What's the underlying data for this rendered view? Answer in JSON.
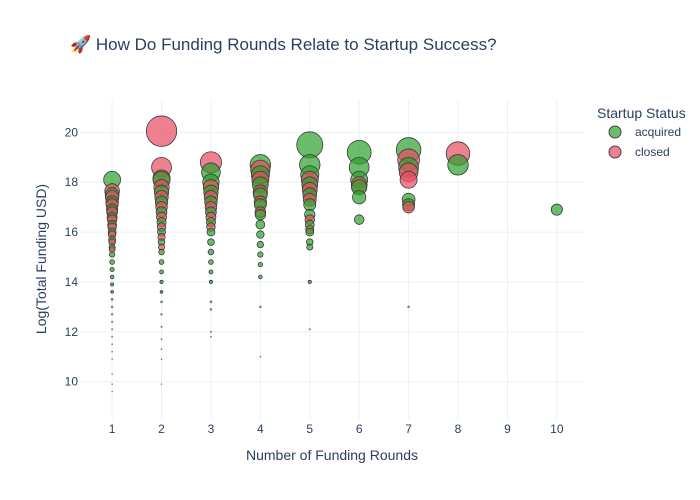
{
  "chart_data": {
    "type": "scatter",
    "title": "🚀 How Do Funding Rounds Relate to Startup Success?",
    "xlabel": "Number of Funding Rounds",
    "ylabel": "Log(Total Funding USD)",
    "xlim": [
      0.35,
      10.55
    ],
    "ylim": [
      8.5,
      21.3
    ],
    "x_ticks": [
      1,
      2,
      3,
      4,
      5,
      6,
      7,
      8,
      9,
      10
    ],
    "y_ticks": [
      10,
      12,
      14,
      16,
      18,
      20
    ],
    "grid": true,
    "legend": {
      "title": "Startup Status",
      "placement": "top-right"
    },
    "series": [
      {
        "name": "acquired",
        "color": "#2ca02c",
        "points": [
          {
            "x": 1,
            "y": 18.1
          },
          {
            "x": 1,
            "y": 17.5
          },
          {
            "x": 1,
            "y": 17.2
          },
          {
            "x": 1,
            "y": 16.9
          },
          {
            "x": 1,
            "y": 16.6
          },
          {
            "x": 1,
            "y": 16.3
          },
          {
            "x": 1,
            "y": 16.0
          },
          {
            "x": 1,
            "y": 15.7
          },
          {
            "x": 1,
            "y": 15.4
          },
          {
            "x": 1,
            "y": 15.1
          },
          {
            "x": 1,
            "y": 14.8
          },
          {
            "x": 1,
            "y": 14.5
          },
          {
            "x": 1,
            "y": 14.2
          },
          {
            "x": 1,
            "y": 13.9
          },
          {
            "x": 1,
            "y": 13.6
          },
          {
            "x": 1,
            "y": 13.3
          },
          {
            "x": 1,
            "y": 13.0
          },
          {
            "x": 1,
            "y": 12.7
          },
          {
            "x": 1,
            "y": 12.4
          },
          {
            "x": 1,
            "y": 12.1
          },
          {
            "x": 1,
            "y": 11.8
          },
          {
            "x": 1,
            "y": 11.5
          },
          {
            "x": 1,
            "y": 11.2
          },
          {
            "x": 1,
            "y": 10.9
          },
          {
            "x": 1,
            "y": 10.3
          },
          {
            "x": 1,
            "y": 9.9
          },
          {
            "x": 1,
            "y": 9.6
          },
          {
            "x": 2,
            "y": 18.1
          },
          {
            "x": 2,
            "y": 17.6
          },
          {
            "x": 2,
            "y": 17.2
          },
          {
            "x": 2,
            "y": 16.8
          },
          {
            "x": 2,
            "y": 16.4
          },
          {
            "x": 2,
            "y": 16.0
          },
          {
            "x": 2,
            "y": 15.6
          },
          {
            "x": 2,
            "y": 15.2
          },
          {
            "x": 2,
            "y": 14.8
          },
          {
            "x": 2,
            "y": 14.4
          },
          {
            "x": 2,
            "y": 14.0
          },
          {
            "x": 2,
            "y": 13.6
          },
          {
            "x": 2,
            "y": 13.2
          },
          {
            "x": 2,
            "y": 12.7
          },
          {
            "x": 2,
            "y": 12.2
          },
          {
            "x": 2,
            "y": 11.7
          },
          {
            "x": 2,
            "y": 11.3
          },
          {
            "x": 2,
            "y": 10.9
          },
          {
            "x": 2,
            "y": 9.9
          },
          {
            "x": 3,
            "y": 18.4
          },
          {
            "x": 3,
            "y": 18.0
          },
          {
            "x": 3,
            "y": 17.6
          },
          {
            "x": 3,
            "y": 17.2
          },
          {
            "x": 3,
            "y": 16.8
          },
          {
            "x": 3,
            "y": 16.4
          },
          {
            "x": 3,
            "y": 16.0
          },
          {
            "x": 3,
            "y": 15.6
          },
          {
            "x": 3,
            "y": 15.2
          },
          {
            "x": 3,
            "y": 14.8
          },
          {
            "x": 3,
            "y": 14.4
          },
          {
            "x": 3,
            "y": 14.0
          },
          {
            "x": 3,
            "y": 13.2
          },
          {
            "x": 3,
            "y": 12.9
          },
          {
            "x": 3,
            "y": 12.0
          },
          {
            "x": 3,
            "y": 11.8
          },
          {
            "x": 4,
            "y": 18.7
          },
          {
            "x": 4,
            "y": 18.3
          },
          {
            "x": 4,
            "y": 17.9
          },
          {
            "x": 4,
            "y": 17.5
          },
          {
            "x": 4,
            "y": 17.1
          },
          {
            "x": 4,
            "y": 16.7
          },
          {
            "x": 4,
            "y": 16.3
          },
          {
            "x": 4,
            "y": 15.9
          },
          {
            "x": 4,
            "y": 15.5
          },
          {
            "x": 4,
            "y": 15.1
          },
          {
            "x": 4,
            "y": 14.7
          },
          {
            "x": 4,
            "y": 14.2
          },
          {
            "x": 4,
            "y": 13.0
          },
          {
            "x": 4,
            "y": 11.0
          },
          {
            "x": 5,
            "y": 19.5
          },
          {
            "x": 5,
            "y": 18.7
          },
          {
            "x": 5,
            "y": 18.3
          },
          {
            "x": 5,
            "y": 17.9
          },
          {
            "x": 5,
            "y": 17.5
          },
          {
            "x": 5,
            "y": 17.1
          },
          {
            "x": 5,
            "y": 16.7
          },
          {
            "x": 5,
            "y": 16.3
          },
          {
            "x": 5,
            "y": 16.0
          },
          {
            "x": 5,
            "y": 15.6
          },
          {
            "x": 5,
            "y": 15.4
          },
          {
            "x": 5,
            "y": 14.0
          },
          {
            "x": 5,
            "y": 12.1
          },
          {
            "x": 6,
            "y": 19.2
          },
          {
            "x": 6,
            "y": 18.6
          },
          {
            "x": 6,
            "y": 18.1
          },
          {
            "x": 6,
            "y": 17.8
          },
          {
            "x": 6,
            "y": 17.4
          },
          {
            "x": 6,
            "y": 16.5
          },
          {
            "x": 7,
            "y": 19.3
          },
          {
            "x": 7,
            "y": 18.6
          },
          {
            "x": 7,
            "y": 17.3
          },
          {
            "x": 7,
            "y": 17.1
          },
          {
            "x": 7,
            "y": 13.0
          },
          {
            "x": 8,
            "y": 18.7
          },
          {
            "x": 10,
            "y": 16.9
          }
        ]
      },
      {
        "name": "closed",
        "color": "#e84a5f",
        "points": [
          {
            "x": 1,
            "y": 17.65
          },
          {
            "x": 1,
            "y": 17.4
          },
          {
            "x": 1,
            "y": 17.1
          },
          {
            "x": 1,
            "y": 16.8
          },
          {
            "x": 1,
            "y": 16.5
          },
          {
            "x": 1,
            "y": 16.2
          },
          {
            "x": 1,
            "y": 15.9
          },
          {
            "x": 1,
            "y": 15.6
          },
          {
            "x": 1,
            "y": 15.3
          },
          {
            "x": 2,
            "y": 20.05
          },
          {
            "x": 2,
            "y": 18.6
          },
          {
            "x": 2,
            "y": 18.15
          },
          {
            "x": 2,
            "y": 17.8
          },
          {
            "x": 2,
            "y": 17.4
          },
          {
            "x": 2,
            "y": 17.0
          },
          {
            "x": 2,
            "y": 16.6
          },
          {
            "x": 2,
            "y": 16.2
          },
          {
            "x": 2,
            "y": 15.8
          },
          {
            "x": 2,
            "y": 15.4
          },
          {
            "x": 3,
            "y": 18.8
          },
          {
            "x": 3,
            "y": 17.8
          },
          {
            "x": 3,
            "y": 17.4
          },
          {
            "x": 3,
            "y": 17.0
          },
          {
            "x": 3,
            "y": 16.6
          },
          {
            "x": 3,
            "y": 16.2
          },
          {
            "x": 4,
            "y": 18.5
          },
          {
            "x": 4,
            "y": 18.1
          },
          {
            "x": 4,
            "y": 17.6
          },
          {
            "x": 4,
            "y": 17.2
          },
          {
            "x": 4,
            "y": 16.8
          },
          {
            "x": 5,
            "y": 18.1
          },
          {
            "x": 5,
            "y": 17.7
          },
          {
            "x": 5,
            "y": 17.3
          },
          {
            "x": 5,
            "y": 16.5
          },
          {
            "x": 5,
            "y": 16.1
          },
          {
            "x": 6,
            "y": 17.9
          },
          {
            "x": 7,
            "y": 18.9
          },
          {
            "x": 7,
            "y": 18.4
          },
          {
            "x": 7,
            "y": 18.1
          },
          {
            "x": 7,
            "y": 17.0
          },
          {
            "x": 8,
            "y": 19.15
          }
        ]
      }
    ]
  }
}
